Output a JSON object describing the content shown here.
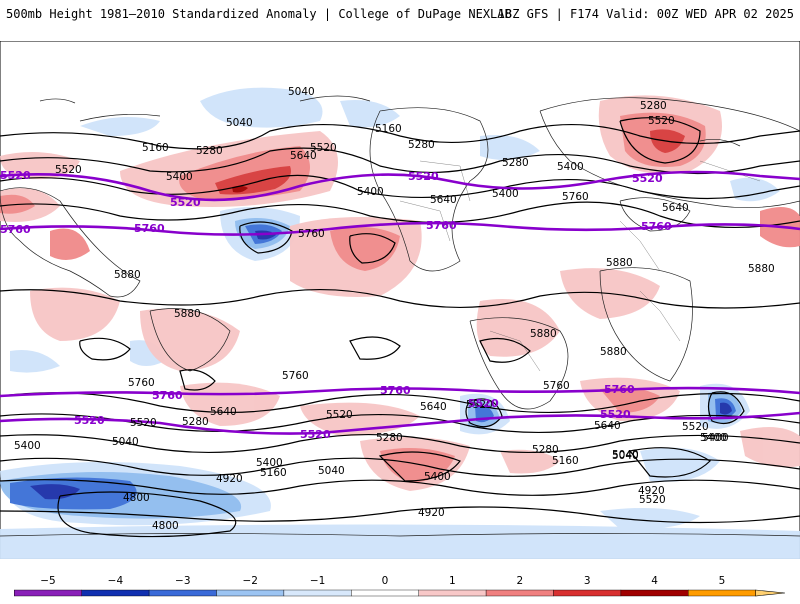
{
  "header": {
    "title": "500mb Height 1981–2010 Standardized Anomaly | College of DuPage NEXLAB",
    "run_info": "18Z GFS | F174 Valid: 00Z WED APR 02 2025"
  },
  "map": {
    "contour_labels": [
      "5040",
      "5040",
      "5160",
      "5280",
      "5280",
      "5280",
      "5520",
      "5520",
      "5640",
      "5400",
      "5400",
      "5760",
      "5640",
      "5400",
      "5160",
      "5280",
      "5520",
      "5400",
      "5760",
      "5640",
      "5880",
      "5880",
      "5880",
      "5880",
      "5880",
      "5880",
      "5760",
      "5760",
      "5640",
      "5520",
      "5520",
      "5280",
      "5280",
      "5400",
      "5400",
      "5400",
      "5280",
      "5160",
      "5040",
      "5040",
      "4920",
      "4800",
      "4800",
      "4920",
      "4920",
      "5040",
      "5160",
      "5400",
      "5520",
      "5640",
      "5760",
      "5640",
      "5520",
      "5520",
      "5040",
      "5400"
    ],
    "reference_lines": [
      {
        "value": "5520",
        "labels": [
          "5520",
          "5520",
          "5520",
          "5520"
        ]
      },
      {
        "value": "5760",
        "labels": [
          "5760",
          "5760",
          "5760",
          "5760"
        ]
      },
      {
        "value": "5760",
        "labels": [
          "5760",
          "5760",
          "5760"
        ]
      },
      {
        "value": "5520",
        "labels": [
          "5520",
          "5520",
          "5520",
          "5520"
        ]
      }
    ],
    "colors": {
      "ocean_bg": "#ffffff",
      "contour": "#000000",
      "ref_line": "#8800cc",
      "anom_pos_1": "#f7c6c6",
      "anom_pos_2": "#f08a8a",
      "anom_pos_3": "#d63a3a",
      "anom_pos_4": "#a00000",
      "anom_neg_1": "#cfe3fa",
      "anom_neg_2": "#8fbcef",
      "anom_neg_3": "#3b6fd6",
      "anom_neg_4": "#1b2fa8"
    }
  },
  "colorbar": {
    "ticks": [
      "−5",
      "−4",
      "−3",
      "−2",
      "−1",
      "0",
      "1",
      "2",
      "3",
      "4",
      "5"
    ],
    "segment_colors": [
      "#d080e0",
      "#8a20b8",
      "#1030b0",
      "#3a6ad8",
      "#9cc4f2",
      "#d8e8fb",
      "#ffffff",
      "#f8c8c8",
      "#f08080",
      "#d83030",
      "#a00000",
      "#ff9c00",
      "#ffd070"
    ]
  }
}
